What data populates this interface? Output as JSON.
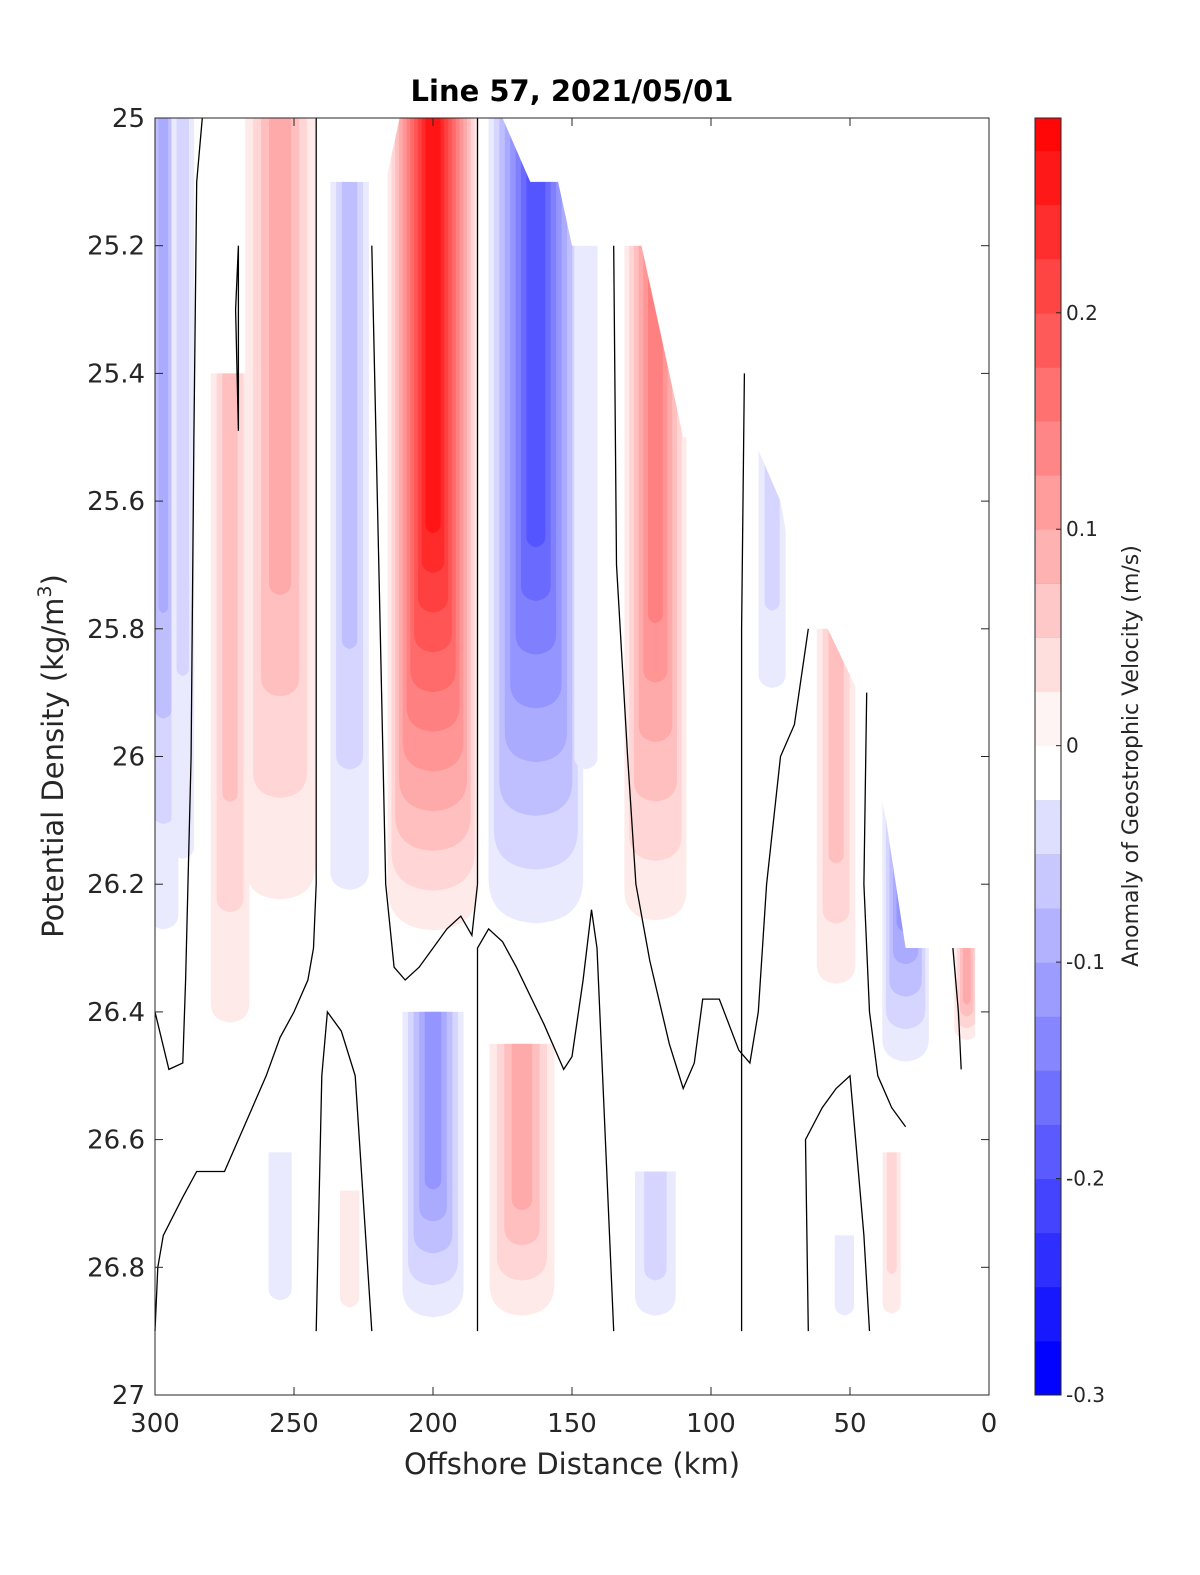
{
  "chart_data": {
    "type": "heatmap",
    "subtype": "filled-contour",
    "title": "Line 57, 2021/05/01",
    "xlabel": "Offshore Distance (km)",
    "ylabel_prefix": "Potential Density (kg/m",
    "ylabel_sup": "3",
    "ylabel_suffix": ")",
    "colorbar_label": "Anomaly of Geostrophic Velocity (m/s)",
    "xlim": [
      300,
      0
    ],
    "x_reversed": true,
    "ylim": [
      25,
      27
    ],
    "y_reversed": true,
    "xticks": [
      300,
      250,
      200,
      150,
      100,
      50,
      0
    ],
    "xtick_labels": [
      "300",
      "250",
      "200",
      "150",
      "100",
      "50",
      "0"
    ],
    "yticks": [
      25,
      25.2,
      25.4,
      25.6,
      25.8,
      26,
      26.2,
      26.4,
      26.6,
      26.8,
      27
    ],
    "ytick_labels": [
      "25",
      "25.2",
      "25.4",
      "25.6",
      "25.8",
      "26",
      "26.2",
      "26.4",
      "26.6",
      "26.8",
      "27"
    ],
    "colorbar_range": [
      -0.3,
      0.29
    ],
    "colorbar_levels": 11,
    "colorbar_step": 0.025,
    "colorbar_ticks": [
      -0.3,
      -0.2,
      -0.1,
      0,
      0.1,
      0.2
    ],
    "colorbar_tick_labels": [
      "-0.3",
      "-0.2",
      "-0.1",
      "0",
      "0.1",
      "0.2"
    ],
    "colormap": {
      "negative": "#0000ff",
      "zero": "#ffffff",
      "positive": "#ff0000"
    },
    "data_bottom_sigma": 26.9,
    "surface_boundary": [
      {
        "x": 300,
        "y": 25
      },
      {
        "x": 232,
        "y": 25
      },
      {
        "x": 232,
        "y": 25.1
      },
      {
        "x": 222,
        "y": 25.1
      },
      {
        "x": 222,
        "y": 25.2
      },
      {
        "x": 212,
        "y": 25.0
      },
      {
        "x": 175,
        "y": 25.0
      },
      {
        "x": 165,
        "y": 25.1
      },
      {
        "x": 155,
        "y": 25.1
      },
      {
        "x": 150,
        "y": 25.2
      },
      {
        "x": 125,
        "y": 25.2
      },
      {
        "x": 115,
        "y": 25.4
      },
      {
        "x": 110,
        "y": 25.5
      },
      {
        "x": 95,
        "y": 25.5
      },
      {
        "x": 85,
        "y": 25.5
      },
      {
        "x": 75,
        "y": 25.6
      },
      {
        "x": 67,
        "y": 25.8
      },
      {
        "x": 58,
        "y": 25.8
      },
      {
        "x": 47,
        "y": 25.9
      },
      {
        "x": 37,
        "y": 26.1
      },
      {
        "x": 30,
        "y": 26.3
      },
      {
        "x": 5,
        "y": 26.3
      },
      {
        "x": 5,
        "y": 26.5
      }
    ],
    "blobs": [
      {
        "x": 297,
        "y_top": 25.0,
        "y_bot": 26.35,
        "half_width": 6,
        "peak": -0.12
      },
      {
        "x": 290,
        "y_top": 25.0,
        "y_bot": 26.3,
        "half_width": 5,
        "peak": -0.06
      },
      {
        "x": 273,
        "y_top": 25.4,
        "y_bot": 26.5,
        "half_width": 8,
        "peak": 0.09
      },
      {
        "x": 255,
        "y_top": 25.0,
        "y_bot": 26.3,
        "half_width": 14,
        "peak": 0.1
      },
      {
        "x": 230,
        "y_top": 25.1,
        "y_bot": 26.3,
        "half_width": 8,
        "peak": -0.08
      },
      {
        "x": 200,
        "y_top": 25.0,
        "y_bot": 26.3,
        "half_width": 17,
        "peak": 0.29
      },
      {
        "x": 163,
        "y_top": 25.0,
        "y_bot": 26.3,
        "half_width": 18,
        "peak": -0.22
      },
      {
        "x": 145,
        "y_top": 25.2,
        "y_bot": 26.2,
        "half_width": 6,
        "peak": -0.04
      },
      {
        "x": 120,
        "y_top": 25.2,
        "y_bot": 26.3,
        "half_width": 12,
        "peak": 0.17
      },
      {
        "x": 78,
        "y_top": 25.4,
        "y_bot": 25.95,
        "half_width": 6,
        "peak": -0.06
      },
      {
        "x": 55,
        "y_top": 25.8,
        "y_bot": 26.4,
        "half_width": 8,
        "peak": 0.09
      },
      {
        "x": 30,
        "y_top": 25.9,
        "y_bot": 26.5,
        "half_width": 9,
        "peak": -0.16
      },
      {
        "x": 8,
        "y_top": 26.3,
        "y_bot": 26.45,
        "half_width": 5,
        "peak": 0.1
      },
      {
        "x": 200,
        "y_top": 26.4,
        "y_bot": 26.9,
        "half_width": 12,
        "peak": -0.14
      },
      {
        "x": 168,
        "y_top": 26.45,
        "y_bot": 26.9,
        "half_width": 13,
        "peak": 0.12
      },
      {
        "x": 255,
        "y_top": 26.62,
        "y_bot": 26.9,
        "half_width": 6,
        "peak": -0.04
      },
      {
        "x": 230,
        "y_top": 26.68,
        "y_bot": 26.9,
        "half_width": 5,
        "peak": 0.04
      },
      {
        "x": 120,
        "y_top": 26.65,
        "y_bot": 26.9,
        "half_width": 9,
        "peak": -0.05
      },
      {
        "x": 52,
        "y_top": 26.75,
        "y_bot": 26.9,
        "half_width": 5,
        "peak": -0.04
      },
      {
        "x": 35,
        "y_top": 26.62,
        "y_bot": 26.9,
        "half_width": 4,
        "peak": 0.05
      }
    ],
    "zero_contours": [
      [
        {
          "x": 300,
          "y": 26.9
        },
        {
          "x": 299,
          "y": 26.8
        },
        {
          "x": 297,
          "y": 26.75
        },
        {
          "x": 290,
          "y": 26.69
        },
        {
          "x": 285,
          "y": 26.65
        },
        {
          "x": 280,
          "y": 26.65
        },
        {
          "x": 275,
          "y": 26.65
        },
        {
          "x": 270,
          "y": 26.6
        },
        {
          "x": 265,
          "y": 26.55
        },
        {
          "x": 260,
          "y": 26.5
        },
        {
          "x": 255,
          "y": 26.44
        },
        {
          "x": 250,
          "y": 26.4
        },
        {
          "x": 245,
          "y": 26.35
        },
        {
          "x": 243,
          "y": 26.3
        },
        {
          "x": 242,
          "y": 26.2
        },
        {
          "x": 242,
          "y": 25.6
        },
        {
          "x": 242,
          "y": 25.0
        }
      ],
      [
        {
          "x": 300,
          "y": 26.4
        },
        {
          "x": 295,
          "y": 26.49
        },
        {
          "x": 290,
          "y": 26.48
        },
        {
          "x": 289,
          "y": 26.35
        },
        {
          "x": 287,
          "y": 26.0
        },
        {
          "x": 286,
          "y": 25.5
        },
        {
          "x": 285,
          "y": 25.1
        },
        {
          "x": 283,
          "y": 25.0
        }
      ],
      [
        {
          "x": 270,
          "y": 25.2
        },
        {
          "x": 271,
          "y": 25.3
        },
        {
          "x": 270,
          "y": 25.49
        },
        {
          "x": 270,
          "y": 25.2
        }
      ],
      [
        {
          "x": 242,
          "y": 26.9
        },
        {
          "x": 240,
          "y": 26.5
        },
        {
          "x": 238,
          "y": 26.4
        },
        {
          "x": 233,
          "y": 26.43
        },
        {
          "x": 228,
          "y": 26.5
        },
        {
          "x": 225,
          "y": 26.7
        },
        {
          "x": 222,
          "y": 26.9
        }
      ],
      [
        {
          "x": 222,
          "y": 25.2
        },
        {
          "x": 219,
          "y": 25.8
        },
        {
          "x": 217,
          "y": 26.2
        },
        {
          "x": 214,
          "y": 26.33
        },
        {
          "x": 210,
          "y": 26.35
        },
        {
          "x": 205,
          "y": 26.33
        },
        {
          "x": 200,
          "y": 26.3
        },
        {
          "x": 195,
          "y": 26.27
        },
        {
          "x": 190,
          "y": 26.25
        },
        {
          "x": 186,
          "y": 26.28
        },
        {
          "x": 184,
          "y": 26.2
        },
        {
          "x": 184,
          "y": 25.0
        }
      ],
      [
        {
          "x": 184,
          "y": 26.9
        },
        {
          "x": 184,
          "y": 26.3
        },
        {
          "x": 180,
          "y": 26.27
        },
        {
          "x": 175,
          "y": 26.29
        },
        {
          "x": 170,
          "y": 26.33
        },
        {
          "x": 160,
          "y": 26.42
        },
        {
          "x": 153,
          "y": 26.49
        },
        {
          "x": 150,
          "y": 26.47
        },
        {
          "x": 146,
          "y": 26.35
        },
        {
          "x": 143,
          "y": 26.24
        },
        {
          "x": 141,
          "y": 26.3
        },
        {
          "x": 139,
          "y": 26.5
        },
        {
          "x": 135,
          "y": 26.9
        }
      ],
      [
        {
          "x": 135,
          "y": 25.2
        },
        {
          "x": 134,
          "y": 25.7
        },
        {
          "x": 130,
          "y": 26.0
        },
        {
          "x": 127,
          "y": 26.2
        },
        {
          "x": 122,
          "y": 26.32
        },
        {
          "x": 115,
          "y": 26.45
        },
        {
          "x": 110,
          "y": 26.52
        },
        {
          "x": 106,
          "y": 26.48
        },
        {
          "x": 103,
          "y": 26.38
        },
        {
          "x": 97,
          "y": 26.38
        },
        {
          "x": 90,
          "y": 26.46
        },
        {
          "x": 86,
          "y": 26.48
        },
        {
          "x": 83,
          "y": 26.4
        },
        {
          "x": 80,
          "y": 26.2
        },
        {
          "x": 75,
          "y": 26.0
        },
        {
          "x": 70,
          "y": 25.95
        },
        {
          "x": 65,
          "y": 25.8
        }
      ],
      [
        {
          "x": 88,
          "y": 25.4
        },
        {
          "x": 89,
          "y": 25.8
        },
        {
          "x": 89,
          "y": 26.9
        }
      ],
      [
        {
          "x": 65,
          "y": 26.9
        },
        {
          "x": 66,
          "y": 26.6
        },
        {
          "x": 60,
          "y": 26.55
        },
        {
          "x": 55,
          "y": 26.52
        },
        {
          "x": 50,
          "y": 26.5
        },
        {
          "x": 48,
          "y": 26.6
        },
        {
          "x": 45,
          "y": 26.75
        },
        {
          "x": 43,
          "y": 26.9
        }
      ],
      [
        {
          "x": 44,
          "y": 25.9
        },
        {
          "x": 45,
          "y": 26.2
        },
        {
          "x": 43,
          "y": 26.4
        },
        {
          "x": 40,
          "y": 26.5
        },
        {
          "x": 35,
          "y": 26.55
        },
        {
          "x": 30,
          "y": 26.58
        }
      ],
      [
        {
          "x": 13,
          "y": 26.3
        },
        {
          "x": 11,
          "y": 26.4
        },
        {
          "x": 10,
          "y": 26.49
        }
      ]
    ]
  }
}
